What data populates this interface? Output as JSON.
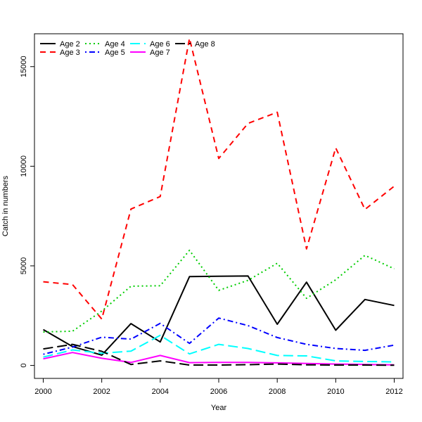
{
  "chart_data": {
    "type": "line",
    "xlabel": "Year",
    "ylabel": "Catch in numbers",
    "xlim": [
      1999.7,
      2012.3
    ],
    "ylim": [
      -650,
      16650
    ],
    "x_ticks": [
      2000,
      2002,
      2004,
      2006,
      2008,
      2010,
      2012
    ],
    "y_ticks": [
      0,
      5000,
      10000,
      15000
    ],
    "grid": false,
    "legend_position": "top-left",
    "x": [
      2000,
      2001,
      2002,
      2003,
      2004,
      2005,
      2006,
      2007,
      2008,
      2009,
      2010,
      2011,
      2012
    ],
    "series": [
      {
        "name": "Age 2",
        "color": "#000000",
        "dash": "solid",
        "values": [
          1800,
          950,
          520,
          2100,
          1180,
          4460,
          4480,
          4490,
          2070,
          4180,
          1770,
          3310,
          3010
        ]
      },
      {
        "name": "Age 3",
        "color": "#ff0000",
        "dash": "dashed",
        "values": [
          4200,
          4060,
          2330,
          7850,
          8480,
          16420,
          10390,
          12150,
          12710,
          5850,
          10920,
          7830,
          9000
        ]
      },
      {
        "name": "Age 4",
        "color": "#00cd00",
        "dash": "dotted",
        "values": [
          1680,
          1720,
          2730,
          3980,
          4000,
          5780,
          3770,
          4270,
          5130,
          3370,
          4300,
          5530,
          4850
        ]
      },
      {
        "name": "Age 5",
        "color": "#0000ff",
        "dash": "dotdash",
        "values": [
          560,
          920,
          1420,
          1320,
          2110,
          1110,
          2380,
          2000,
          1400,
          1060,
          850,
          760,
          1020
        ]
      },
      {
        "name": "Age 6",
        "color": "#00ffff",
        "dash": "longdash",
        "values": [
          420,
          780,
          610,
          720,
          1510,
          580,
          1060,
          850,
          500,
          480,
          230,
          200,
          180
        ]
      },
      {
        "name": "Age 7",
        "color": "#ff00ff",
        "dash": "solid",
        "values": [
          330,
          650,
          360,
          150,
          500,
          140,
          150,
          150,
          130,
          100,
          70,
          50,
          30
        ]
      },
      {
        "name": "Age 8",
        "color": "#000000",
        "dash": "longdash",
        "values": [
          830,
          1060,
          710,
          50,
          230,
          20,
          20,
          40,
          70,
          30,
          20,
          20,
          10
        ]
      }
    ]
  }
}
